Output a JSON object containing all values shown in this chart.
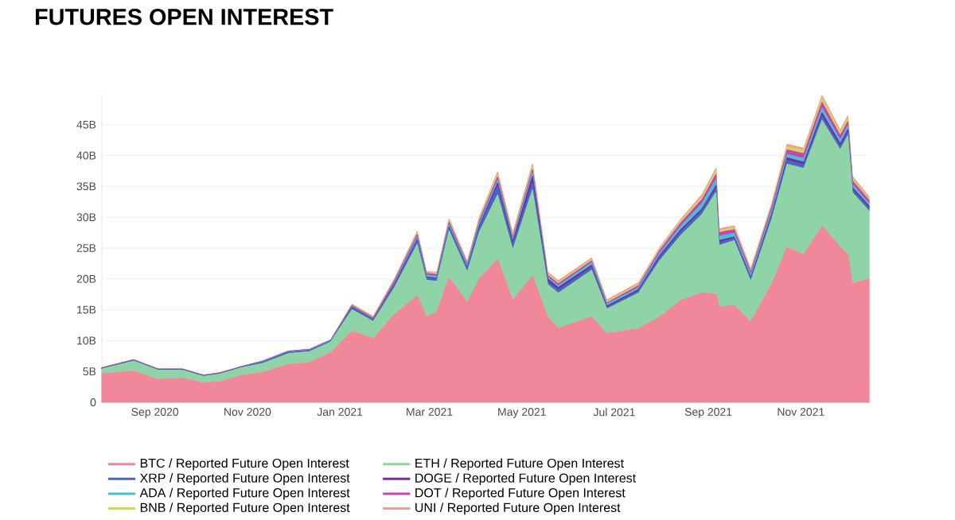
{
  "chart_data": {
    "type": "area",
    "title": "FUTURES OPEN INTEREST",
    "stacked": true,
    "grid": "y",
    "legend": "bottom",
    "x": [
      "2020-07-28",
      "2020-08-18",
      "2020-09-03",
      "2020-09-19",
      "2020-10-03",
      "2020-10-14",
      "2020-10-28",
      "2020-11-11",
      "2020-11-28",
      "2020-12-12",
      "2020-12-26",
      "2021-01-09",
      "2021-01-23",
      "2021-02-06",
      "2021-02-21",
      "2021-02-27",
      "2021-03-06",
      "2021-03-14",
      "2021-03-26",
      "2021-04-03",
      "2021-04-15",
      "2021-04-25",
      "2021-05-08",
      "2021-05-18",
      "2021-05-25",
      "2021-06-16",
      "2021-06-26",
      "2021-07-17",
      "2021-07-31",
      "2021-08-14",
      "2021-08-28",
      "2021-09-06",
      "2021-09-08",
      "2021-09-18",
      "2021-09-29",
      "2021-10-13",
      "2021-10-23",
      "2021-11-03",
      "2021-11-15",
      "2021-11-27",
      "2021-12-02",
      "2021-12-05",
      "2021-12-16"
    ],
    "xlim": [
      "2020-07-28",
      "2021-12-16"
    ],
    "xticks": [
      {
        "value": "2020-09-01",
        "label": "Sep 2020"
      },
      {
        "value": "2020-11-01",
        "label": "Nov 2020"
      },
      {
        "value": "2021-01-01",
        "label": "Jan 2021"
      },
      {
        "value": "2021-03-01",
        "label": "Mar 2021"
      },
      {
        "value": "2021-05-01",
        "label": "May 2021"
      },
      {
        "value": "2021-07-01",
        "label": "Jul 2021"
      },
      {
        "value": "2021-09-01",
        "label": "Sep 2021"
      },
      {
        "value": "2021-11-01",
        "label": "Nov 2021"
      }
    ],
    "ylim": [
      0,
      50
    ],
    "yticks": [
      0,
      {
        "value": 5,
        "label": "5B"
      },
      {
        "value": 10,
        "label": "10B"
      },
      {
        "value": 15,
        "label": "15B"
      },
      {
        "value": 20,
        "label": "20B"
      },
      {
        "value": 25,
        "label": "25B"
      },
      {
        "value": 30,
        "label": "30B"
      },
      {
        "value": 35,
        "label": "35B"
      },
      {
        "value": 40,
        "label": "40B"
      },
      {
        "value": 45,
        "label": "45B"
      }
    ],
    "series": [
      {
        "name": "BTC / Reported Future Open Interest",
        "color": "#f0879b",
        "values": [
          4.6,
          5.0,
          3.7,
          3.9,
          3.1,
          3.3,
          4.3,
          4.8,
          6.1,
          6.4,
          8.0,
          11.5,
          10.3,
          14.2,
          17.2,
          13.8,
          14.6,
          20.2,
          16.1,
          20.0,
          23.1,
          16.5,
          20.4,
          13.8,
          11.9,
          13.8,
          11.1,
          11.9,
          13.8,
          16.5,
          17.7,
          17.5,
          15.4,
          15.7,
          13.0,
          19.2,
          25.1,
          23.9,
          28.5,
          25.1,
          23.9,
          19.2,
          20.0
        ]
      },
      {
        "name": "ETH / Reported Future Open Interest",
        "color": "#8fd4a6",
        "values": [
          0.8,
          1.7,
          1.5,
          1.3,
          1.1,
          1.3,
          1.3,
          1.5,
          1.8,
          1.8,
          1.8,
          3.5,
          2.8,
          4.4,
          8.4,
          6.0,
          5.0,
          7.6,
          5.0,
          7.6,
          10.5,
          8.2,
          14.0,
          5.3,
          5.8,
          7.6,
          4.0,
          5.8,
          9.2,
          10.6,
          12.8,
          16.5,
          10.0,
          10.5,
          6.6,
          10.6,
          13.5,
          14.0,
          17.2,
          15.8,
          19.3,
          14.8,
          11.0
        ]
      },
      {
        "name": "XRP / Reported Future Open Interest",
        "color": "#4a64c8",
        "values": [
          0.1,
          0.1,
          0.1,
          0.1,
          0.1,
          0.1,
          0.1,
          0.2,
          0.2,
          0.2,
          0.1,
          0.3,
          0.2,
          0.4,
          0.6,
          0.4,
          0.4,
          0.5,
          0.6,
          0.8,
          1.4,
          0.8,
          1.2,
          0.5,
          0.5,
          0.5,
          0.3,
          0.4,
          0.5,
          0.6,
          0.6,
          0.7,
          0.5,
          0.4,
          0.4,
          0.5,
          0.6,
          0.6,
          0.7,
          0.6,
          0.6,
          0.5,
          0.5
        ]
      },
      {
        "name": "DOGE / Reported Future Open Interest",
        "color": "#7a2a9a",
        "values": [
          0,
          0,
          0,
          0,
          0,
          0,
          0,
          0,
          0,
          0,
          0,
          0.1,
          0.1,
          0.2,
          0.2,
          0.1,
          0.1,
          0.1,
          0.1,
          0.2,
          0.5,
          0.5,
          1.0,
          0.4,
          0.4,
          0.3,
          0.2,
          0.2,
          0.3,
          0.3,
          0.3,
          0.4,
          0.3,
          0.2,
          0.2,
          0.3,
          0.4,
          0.4,
          0.5,
          0.4,
          0.4,
          0.3,
          0.3
        ]
      },
      {
        "name": "ADA / Reported Future Open Interest",
        "color": "#46c0d8",
        "values": [
          0,
          0,
          0,
          0,
          0,
          0,
          0,
          0.1,
          0.1,
          0.1,
          0.1,
          0.1,
          0.1,
          0.2,
          0.4,
          0.3,
          0.3,
          0.4,
          0.3,
          0.4,
          0.5,
          0.4,
          0.6,
          0.3,
          0.3,
          0.4,
          0.3,
          0.3,
          0.4,
          0.6,
          0.9,
          1.0,
          0.7,
          0.6,
          0.5,
          0.6,
          0.6,
          0.6,
          0.8,
          0.6,
          0.6,
          0.5,
          0.4
        ]
      },
      {
        "name": "DOT / Reported Future Open Interest",
        "color": "#d040b0",
        "values": [
          0.1,
          0.1,
          0.1,
          0.1,
          0.1,
          0.1,
          0.1,
          0.1,
          0.1,
          0.1,
          0.1,
          0.2,
          0.2,
          0.3,
          0.4,
          0.3,
          0.3,
          0.4,
          0.3,
          0.4,
          0.5,
          0.3,
          0.5,
          0.3,
          0.3,
          0.3,
          0.2,
          0.3,
          0.4,
          0.5,
          0.6,
          0.8,
          0.6,
          0.6,
          0.4,
          0.6,
          0.7,
          0.8,
          0.9,
          0.7,
          0.7,
          0.6,
          0.5
        ]
      },
      {
        "name": "BNB / Reported Future Open Interest",
        "color": "#c8e050",
        "values": [
          0,
          0,
          0,
          0,
          0,
          0,
          0,
          0,
          0,
          0,
          0,
          0.1,
          0.1,
          0.1,
          0.2,
          0.1,
          0.2,
          0.2,
          0.2,
          0.3,
          0.4,
          0.3,
          0.4,
          0.2,
          0.2,
          0.2,
          0.2,
          0.2,
          0.2,
          0.3,
          0.4,
          0.5,
          0.3,
          0.3,
          0.2,
          0.3,
          0.5,
          0.5,
          0.6,
          0.5,
          0.5,
          0.3,
          0.3
        ]
      },
      {
        "name": "UNI / Reported Future Open Interest",
        "color": "#f0a090",
        "values": [
          0,
          0,
          0,
          0,
          0,
          0,
          0,
          0,
          0,
          0,
          0,
          0.1,
          0.1,
          0.2,
          0.3,
          0.2,
          0.2,
          0.3,
          0.2,
          0.3,
          0.4,
          0.4,
          0.5,
          0.3,
          0.3,
          0.3,
          0.3,
          0.3,
          0.3,
          0.3,
          0.4,
          0.5,
          0.3,
          0.3,
          0.3,
          0.3,
          0.4,
          0.4,
          0.5,
          0.4,
          0.4,
          0.4,
          0.3
        ]
      }
    ]
  }
}
